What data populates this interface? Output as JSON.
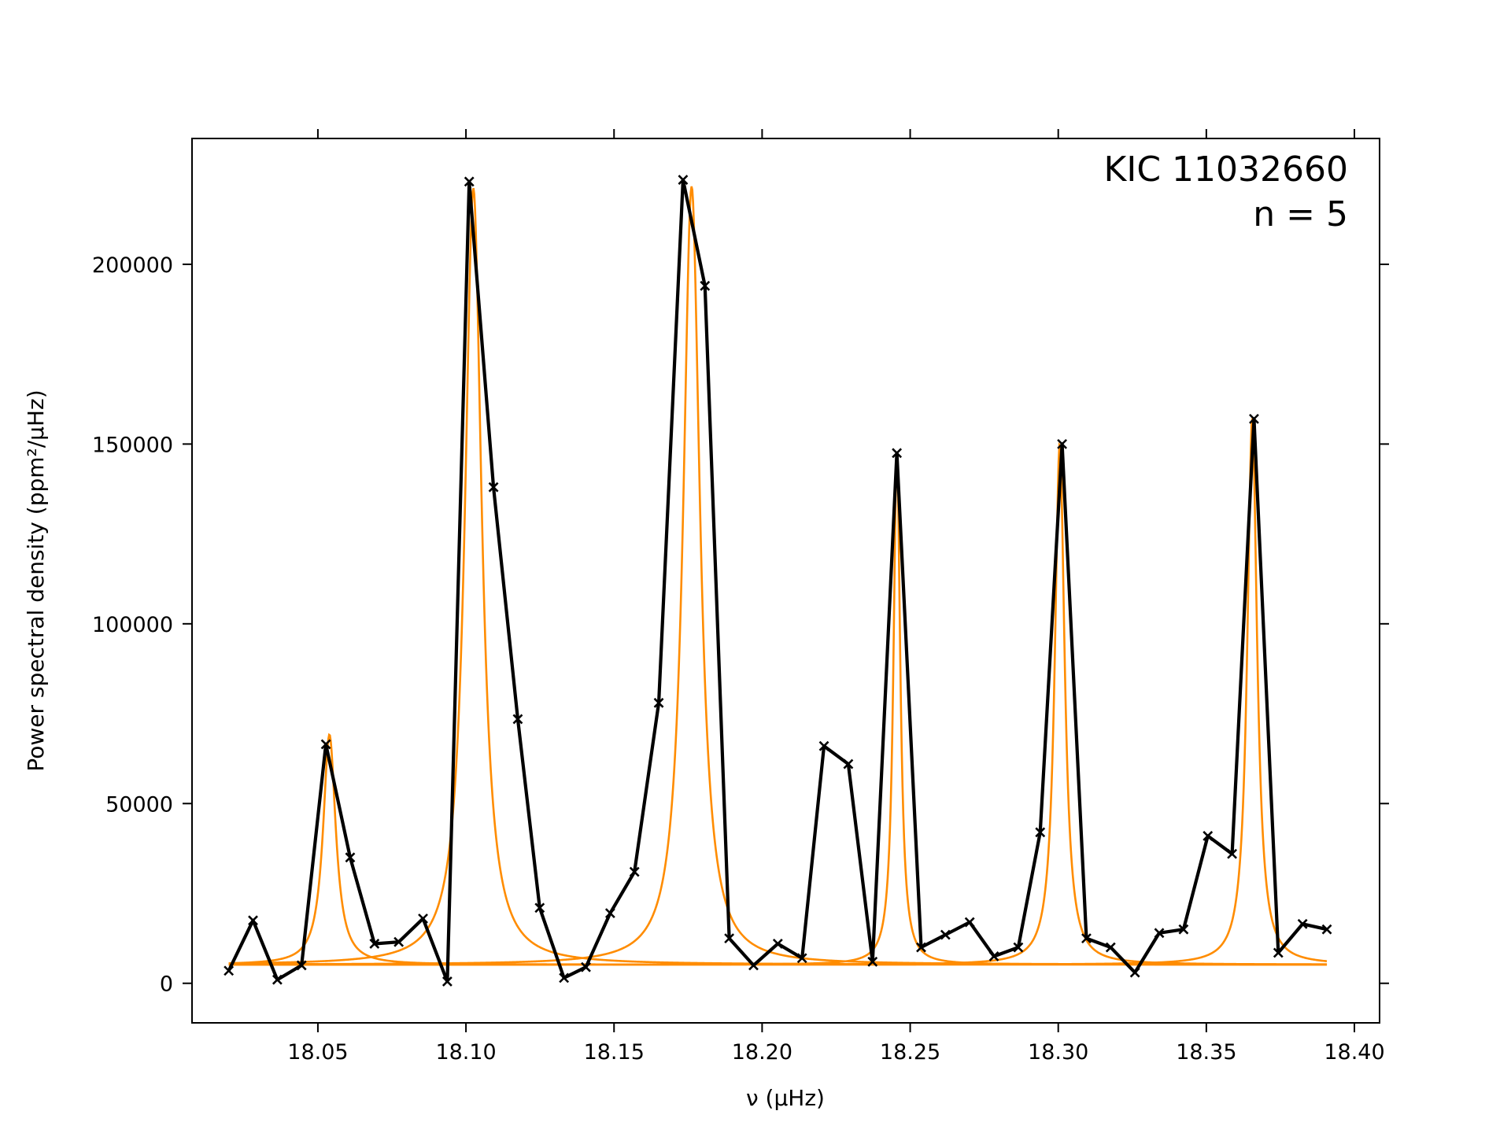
{
  "chart_data": {
    "type": "line",
    "title": "",
    "xlabel": "ν (μHz)",
    "ylabel": "Power spectral density (ppm²/μHz)",
    "xlim": [
      18.0075,
      18.4085
    ],
    "ylim": [
      -11000,
      235000
    ],
    "xticks": [
      18.05,
      18.1,
      18.15,
      18.2,
      18.25,
      18.3,
      18.35,
      18.4
    ],
    "xtick_labels": [
      "18.05",
      "18.10",
      "18.15",
      "18.20",
      "18.25",
      "18.30",
      "18.35",
      "18.40"
    ],
    "yticks": [
      0,
      50000,
      100000,
      150000,
      200000
    ],
    "ytick_labels": [
      "0",
      "50000",
      "100000",
      "150000",
      "200000"
    ],
    "grid": false,
    "annotations": [
      "KIC 11032660",
      "n = 5"
    ],
    "colors": {
      "data": "#000000",
      "model": "#ff8c00"
    },
    "series": [
      {
        "kind": "data",
        "marker": "x",
        "x": [
          18.0199,
          18.0281,
          18.0363,
          18.0445,
          18.0527,
          18.0609,
          18.0691,
          18.0773,
          18.0855,
          18.0937,
          18.1011,
          18.1093,
          18.1175,
          18.1249,
          18.1331,
          18.1405,
          18.1487,
          18.1569,
          18.1651,
          18.1733,
          18.1807,
          18.1889,
          18.1971,
          18.2053,
          18.2135,
          18.2209,
          18.2291,
          18.2373,
          18.2455,
          18.2537,
          18.2619,
          18.2701,
          18.2783,
          18.2865,
          18.2939,
          18.3013,
          18.3095,
          18.3177,
          18.3259,
          18.3341,
          18.3423,
          18.3505,
          18.3587,
          18.3661,
          18.3743,
          18.3825,
          18.3907
        ],
        "y": [
          3500,
          17500,
          1000,
          5000,
          66500,
          35000,
          11000,
          11500,
          18000,
          500,
          223000,
          138000,
          73500,
          21000,
          1500,
          4500,
          19500,
          31000,
          78000,
          223500,
          194000,
          12500,
          5000,
          11000,
          7000,
          66000,
          61000,
          6000,
          147500,
          10000,
          13500,
          17000,
          7500,
          10000,
          42000,
          150000,
          12500,
          10000,
          3000,
          14000,
          15000,
          41000,
          36000,
          157000,
          8500,
          16500,
          15000
        ]
      },
      {
        "kind": "model",
        "center": 18.0539,
        "height": 64000,
        "width": 0.0026
      },
      {
        "kind": "model",
        "center": 18.1025,
        "height": 216000,
        "width": 0.0034
      },
      {
        "kind": "model",
        "center": 18.1762,
        "height": 216500,
        "width": 0.0034
      },
      {
        "kind": "model",
        "center": 18.2455,
        "height": 142500,
        "width": 0.0014
      },
      {
        "kind": "model",
        "center": 18.3005,
        "height": 145000,
        "width": 0.002
      },
      {
        "kind": "model",
        "center": 18.3655,
        "height": 152000,
        "width": 0.002
      }
    ],
    "model_offset": 5200
  }
}
